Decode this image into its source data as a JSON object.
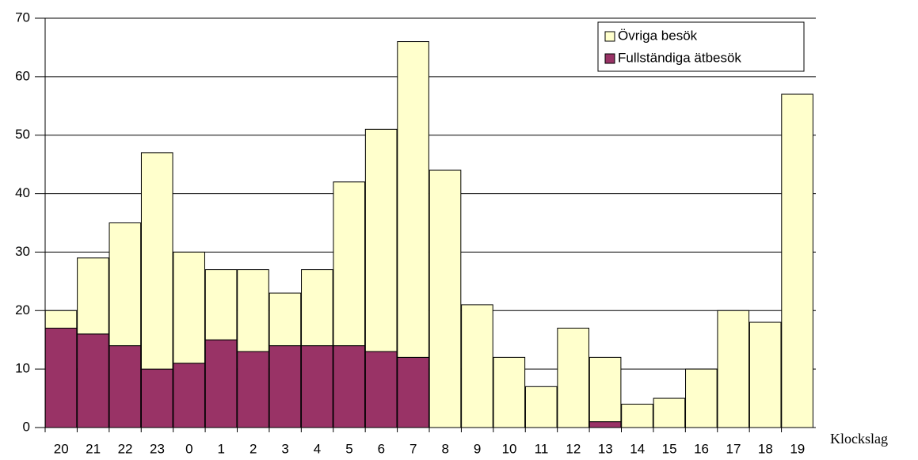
{
  "chart_data": {
    "type": "bar",
    "stacked": true,
    "x_label": "Klockslag",
    "categories": [
      "20",
      "21",
      "22",
      "23",
      "0",
      "1",
      "2",
      "3",
      "4",
      "5",
      "6",
      "7",
      "8",
      "9",
      "10",
      "11",
      "12",
      "13",
      "14",
      "15",
      "16",
      "17",
      "18",
      "19"
    ],
    "series": [
      {
        "name": "Fullständiga ätbesök",
        "color": "#993366",
        "values": [
          17,
          16,
          14,
          10,
          11,
          15,
          13,
          14,
          14,
          14,
          13,
          12,
          0,
          0,
          0,
          0,
          0,
          1,
          0,
          0,
          0,
          0,
          0,
          0
        ]
      },
      {
        "name": "Övriga besök",
        "color": "#ffffcc",
        "values": [
          3,
          13,
          21,
          37,
          19,
          12,
          14,
          9,
          13,
          28,
          38,
          54,
          44,
          21,
          12,
          7,
          17,
          11,
          4,
          5,
          10,
          20,
          18,
          57
        ]
      }
    ],
    "ylim": [
      0,
      70
    ],
    "yticks": [
      0,
      10,
      20,
      30,
      40,
      50,
      60,
      70
    ],
    "grid": true,
    "legend": "top-right"
  }
}
